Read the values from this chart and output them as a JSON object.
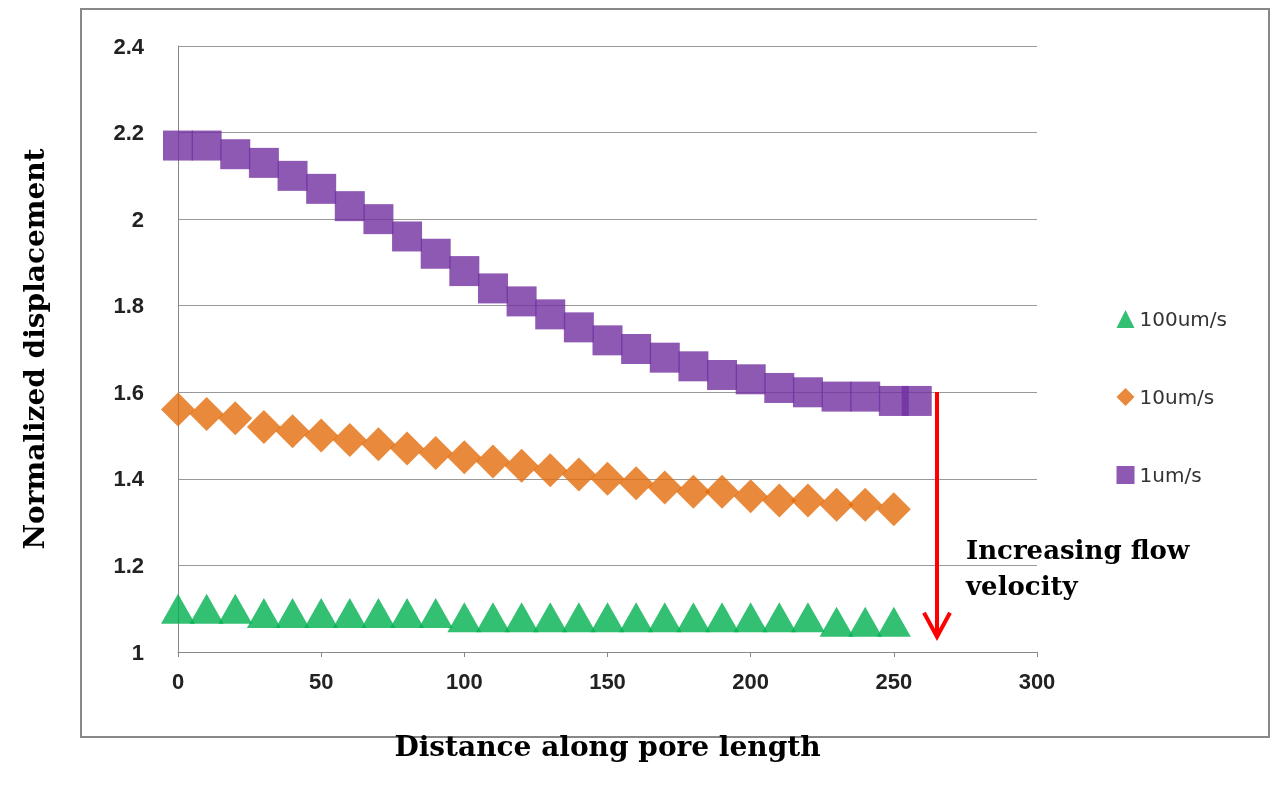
{
  "chart_data": {
    "type": "scatter",
    "xlabel": "Distance along pore length",
    "ylabel": "Normalized displacement",
    "xlim": [
      0,
      300
    ],
    "xticks": [
      0,
      50,
      100,
      150,
      200,
      250,
      300
    ],
    "ylim": [
      1,
      2.4
    ],
    "yticks": [
      1,
      1.2,
      1.4,
      1.6,
      1.8,
      2,
      2.2,
      2.4
    ],
    "grid": "y",
    "legend": "right",
    "annotations": [
      "Increasing flow velocity"
    ],
    "x": [
      0,
      10,
      20,
      30,
      40,
      50,
      60,
      70,
      80,
      90,
      100,
      110,
      120,
      130,
      140,
      150,
      160,
      170,
      180,
      190,
      200,
      210,
      220,
      230,
      240,
      250
    ],
    "series": [
      {
        "name": "100um/s",
        "color": "#00b050",
        "marker": "triangle",
        "values": [
          1.1,
          1.1,
          1.1,
          1.09,
          1.09,
          1.09,
          1.09,
          1.09,
          1.09,
          1.09,
          1.08,
          1.08,
          1.08,
          1.08,
          1.08,
          1.08,
          1.08,
          1.08,
          1.08,
          1.08,
          1.08,
          1.08,
          1.08,
          1.07,
          1.07,
          1.07
        ]
      },
      {
        "name": "10um/s",
        "color": "#e46c0a",
        "marker": "diamond",
        "values": [
          1.56,
          1.55,
          1.54,
          1.52,
          1.51,
          1.5,
          1.49,
          1.48,
          1.47,
          1.46,
          1.45,
          1.44,
          1.43,
          1.42,
          1.41,
          1.4,
          1.39,
          1.38,
          1.37,
          1.37,
          1.36,
          1.35,
          1.35,
          1.34,
          1.34,
          1.33
        ]
      },
      {
        "name": "1um/s",
        "color": "#7030a0",
        "marker": "square",
        "x": [
          0,
          10,
          20,
          30,
          40,
          50,
          60,
          70,
          80,
          90,
          100,
          110,
          120,
          130,
          140,
          150,
          160,
          170,
          180,
          190,
          200,
          210,
          220,
          230,
          240,
          250,
          258
        ],
        "values": [
          2.17,
          2.17,
          2.15,
          2.13,
          2.1,
          2.07,
          2.03,
          2.0,
          1.96,
          1.92,
          1.88,
          1.84,
          1.81,
          1.78,
          1.75,
          1.72,
          1.7,
          1.68,
          1.66,
          1.64,
          1.63,
          1.61,
          1.6,
          1.59,
          1.59,
          1.58,
          1.58
        ]
      }
    ]
  }
}
